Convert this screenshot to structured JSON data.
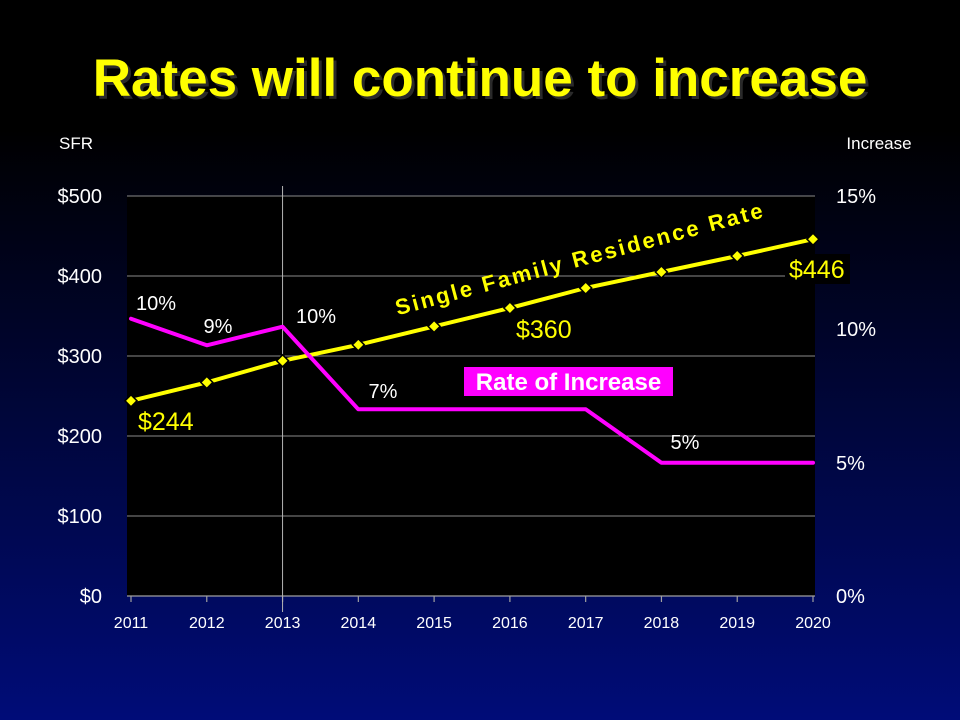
{
  "colors": {
    "background_top": "#000000",
    "background_bottom": "#000c78",
    "plot_area": "#000000",
    "title": "#ffff00",
    "label_text": "#ffffff",
    "gridline": "#8a8a8a",
    "rate_label_box": "#ff00ff",
    "sfr_label_box": "#000000"
  },
  "chart_data": {
    "type": "line",
    "title": "Rates will continue to increase",
    "categories": [
      "2011",
      "2012",
      "2013",
      "2014",
      "2015",
      "2016",
      "2017",
      "2018",
      "2019",
      "2020"
    ],
    "y_axis": {
      "label": "SFR",
      "lim": [
        0,
        500
      ],
      "step": 100,
      "tick_labels": [
        "$0",
        "$100",
        "$200",
        "$300",
        "$400",
        "$500"
      ]
    },
    "y2_axis": {
      "label": "Increase",
      "lim": [
        0,
        15
      ],
      "step": 5,
      "tick_labels": [
        "0%",
        "5%",
        "10%",
        "15%"
      ]
    },
    "series": [
      {
        "name": "Single Family Residence Rate",
        "axis": "left",
        "marker": "diamond",
        "color": "#ffff00",
        "values": [
          244,
          267,
          294,
          314,
          337,
          360,
          385,
          405,
          425,
          446
        ],
        "data_labels": [
          {
            "category": "2011",
            "text": "$244"
          },
          {
            "category": "2016",
            "text": "$360"
          },
          {
            "category": "2020",
            "text": "$446"
          }
        ]
      },
      {
        "name": "Rate of Increase",
        "axis": "right",
        "marker": "none",
        "color": "#ff00ff",
        "values": [
          10.4,
          9.4,
          10.1,
          7,
          7,
          7,
          7,
          5,
          5,
          5
        ],
        "data_labels": [
          {
            "category": "2011",
            "text": "10%"
          },
          {
            "category": "2012",
            "text": "9%"
          },
          {
            "category": "2013",
            "text": "10%"
          },
          {
            "category": "2014",
            "text": "7%"
          },
          {
            "category": "2018",
            "text": "5%"
          }
        ]
      }
    ],
    "grid": true,
    "legend": "none",
    "reference_line": {
      "category": "2013"
    }
  }
}
